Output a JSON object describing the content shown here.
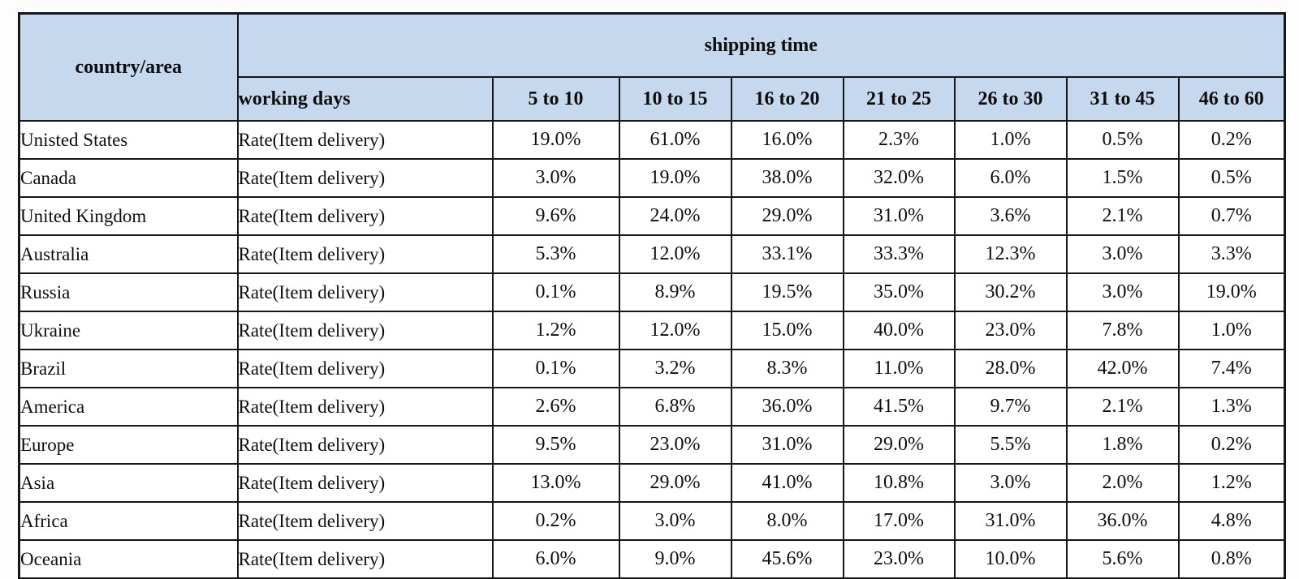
{
  "table": {
    "header": {
      "country_area": "country/area",
      "shipping_time": "shipping time",
      "working_days": "working days",
      "ranges": [
        "5 to 10",
        "10 to 15",
        "16 to 20",
        "21 to 25",
        "26 to 30",
        "31 to 45",
        "46 to 60"
      ]
    },
    "row_label": "Rate(Item delivery)",
    "rows": [
      {
        "country": "Unisted States",
        "values": [
          "19.0%",
          "61.0%",
          "16.0%",
          "2.3%",
          "1.0%",
          "0.5%",
          "0.2%"
        ]
      },
      {
        "country": "Canada",
        "values": [
          "3.0%",
          "19.0%",
          "38.0%",
          "32.0%",
          "6.0%",
          "1.5%",
          "0.5%"
        ]
      },
      {
        "country": "United Kingdom",
        "values": [
          "9.6%",
          "24.0%",
          "29.0%",
          "31.0%",
          "3.6%",
          "2.1%",
          "0.7%"
        ]
      },
      {
        "country": "Australia",
        "values": [
          "5.3%",
          "12.0%",
          "33.1%",
          "33.3%",
          "12.3%",
          "3.0%",
          "3.3%"
        ]
      },
      {
        "country": "Russia",
        "values": [
          "0.1%",
          "8.9%",
          "19.5%",
          "35.0%",
          "30.2%",
          "3.0%",
          "19.0%"
        ]
      },
      {
        "country": "Ukraine",
        "values": [
          "1.2%",
          "12.0%",
          "15.0%",
          "40.0%",
          "23.0%",
          "7.8%",
          "1.0%"
        ]
      },
      {
        "country": "Brazil",
        "values": [
          "0.1%",
          "3.2%",
          "8.3%",
          "11.0%",
          "28.0%",
          "42.0%",
          "7.4%"
        ]
      },
      {
        "country": "America",
        "values": [
          "2.6%",
          "6.8%",
          "36.0%",
          "41.5%",
          "9.7%",
          "2.1%",
          "1.3%"
        ]
      },
      {
        "country": "Europe",
        "values": [
          "9.5%",
          "23.0%",
          "31.0%",
          "29.0%",
          "5.5%",
          "1.8%",
          "0.2%"
        ]
      },
      {
        "country": "Asia",
        "values": [
          "13.0%",
          "29.0%",
          "41.0%",
          "10.8%",
          "3.0%",
          "2.0%",
          "1.2%"
        ]
      },
      {
        "country": "Africa",
        "values": [
          "0.2%",
          "3.0%",
          "8.0%",
          "17.0%",
          "31.0%",
          "36.0%",
          "4.8%"
        ]
      },
      {
        "country": "Oceania",
        "values": [
          "6.0%",
          "9.0%",
          "45.6%",
          "23.0%",
          "10.0%",
          "5.6%",
          "0.8%"
        ]
      }
    ],
    "colors": {
      "header_bg": "#c5d8ee",
      "border": "#161616",
      "text": "#0e0e0e",
      "body_bg": "#ffffff"
    }
  },
  "chart_data": {
    "type": "table",
    "title": "shipping time",
    "row_header": "country/area",
    "measure": "Rate(Item delivery)",
    "x_unit": "working days",
    "value_unit": "%",
    "categories": [
      "5 to 10",
      "10 to 15",
      "16 to 20",
      "21 to 25",
      "26 to 30",
      "31 to 45",
      "46 to 60"
    ],
    "series": [
      {
        "name": "Unisted States",
        "values": [
          19.0,
          61.0,
          16.0,
          2.3,
          1.0,
          0.5,
          0.2
        ]
      },
      {
        "name": "Canada",
        "values": [
          3.0,
          19.0,
          38.0,
          32.0,
          6.0,
          1.5,
          0.5
        ]
      },
      {
        "name": "United Kingdom",
        "values": [
          9.6,
          24.0,
          29.0,
          31.0,
          3.6,
          2.1,
          0.7
        ]
      },
      {
        "name": "Australia",
        "values": [
          5.3,
          12.0,
          33.1,
          33.3,
          12.3,
          3.0,
          3.3
        ]
      },
      {
        "name": "Russia",
        "values": [
          0.1,
          8.9,
          19.5,
          35.0,
          30.2,
          3.0,
          19.0
        ]
      },
      {
        "name": "Ukraine",
        "values": [
          1.2,
          12.0,
          15.0,
          40.0,
          23.0,
          7.8,
          1.0
        ]
      },
      {
        "name": "Brazil",
        "values": [
          0.1,
          3.2,
          8.3,
          11.0,
          28.0,
          42.0,
          7.4
        ]
      },
      {
        "name": "America",
        "values": [
          2.6,
          6.8,
          36.0,
          41.5,
          9.7,
          2.1,
          1.3
        ]
      },
      {
        "name": "Europe",
        "values": [
          9.5,
          23.0,
          31.0,
          29.0,
          5.5,
          1.8,
          0.2
        ]
      },
      {
        "name": "Asia",
        "values": [
          13.0,
          29.0,
          41.0,
          10.8,
          3.0,
          2.0,
          1.2
        ]
      },
      {
        "name": "Africa",
        "values": [
          0.2,
          3.0,
          8.0,
          17.0,
          31.0,
          36.0,
          4.8
        ]
      },
      {
        "name": "Oceania",
        "values": [
          6.0,
          9.0,
          45.6,
          23.0,
          10.0,
          5.6,
          0.8
        ]
      }
    ]
  }
}
